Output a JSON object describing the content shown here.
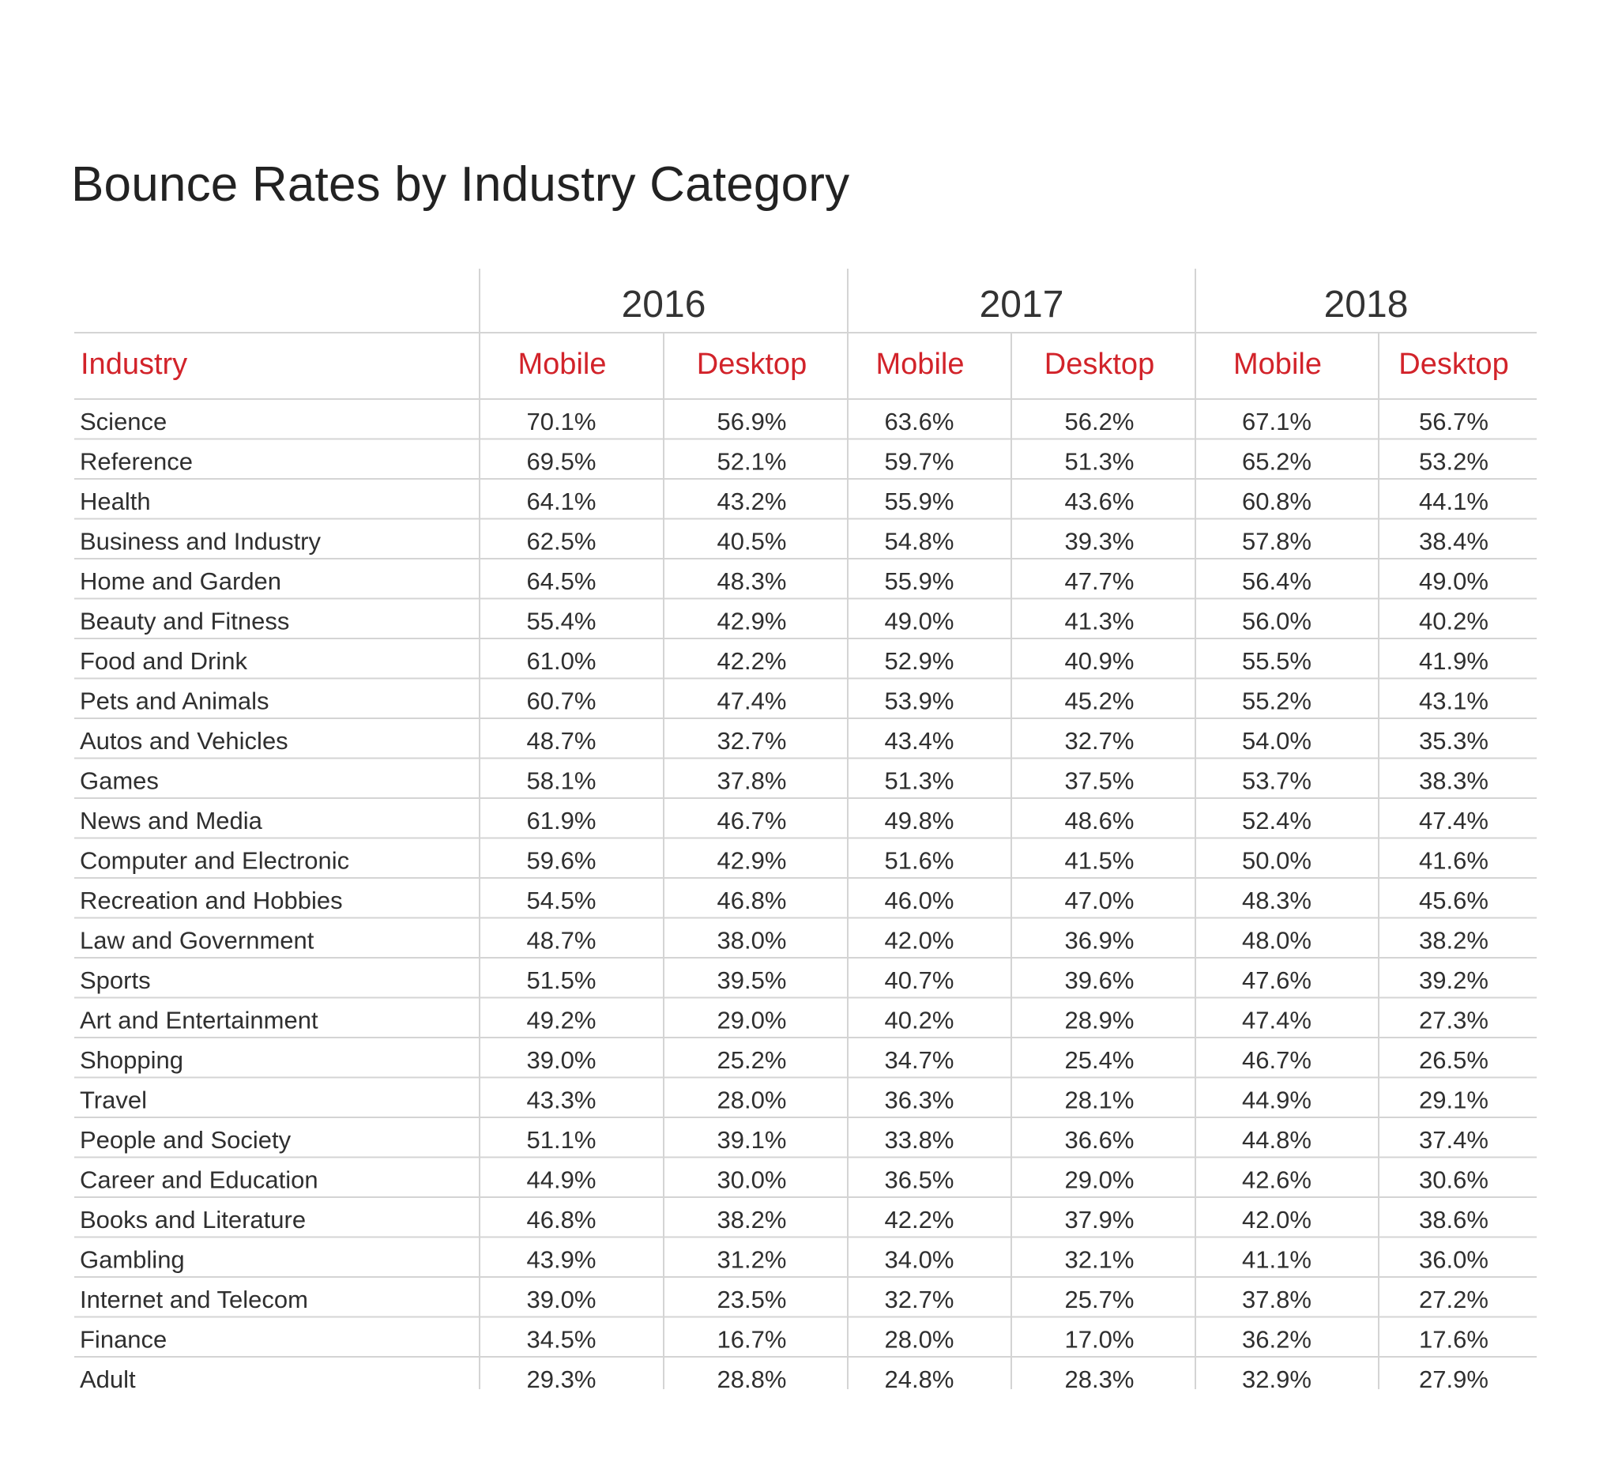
{
  "chart_data": {
    "type": "table",
    "title": "Bounce Rates by Industry Category",
    "row_header": "Industry",
    "years": [
      "2016",
      "2017",
      "2018"
    ],
    "sub_columns": [
      "Mobile",
      "Desktop"
    ],
    "accent_color": "#d2232a",
    "grid_color": "#d4d4d4",
    "rows": [
      {
        "industry": "Science",
        "values": [
          "70.1%",
          "56.9%",
          "63.6%",
          "56.2%",
          "67.1%",
          "56.7%"
        ]
      },
      {
        "industry": "Reference",
        "values": [
          "69.5%",
          "52.1%",
          "59.7%",
          "51.3%",
          "65.2%",
          "53.2%"
        ]
      },
      {
        "industry": "Health",
        "values": [
          "64.1%",
          "43.2%",
          "55.9%",
          "43.6%",
          "60.8%",
          "44.1%"
        ]
      },
      {
        "industry": "Business and Industry",
        "values": [
          "62.5%",
          "40.5%",
          "54.8%",
          "39.3%",
          "57.8%",
          "38.4%"
        ]
      },
      {
        "industry": "Home and Garden",
        "values": [
          "64.5%",
          "48.3%",
          "55.9%",
          "47.7%",
          "56.4%",
          "49.0%"
        ]
      },
      {
        "industry": "Beauty and Fitness",
        "values": [
          "55.4%",
          "42.9%",
          "49.0%",
          "41.3%",
          "56.0%",
          "40.2%"
        ]
      },
      {
        "industry": "Food and Drink",
        "values": [
          "61.0%",
          "42.2%",
          "52.9%",
          "40.9%",
          "55.5%",
          "41.9%"
        ]
      },
      {
        "industry": "Pets and Animals",
        "values": [
          "60.7%",
          "47.4%",
          "53.9%",
          "45.2%",
          "55.2%",
          "43.1%"
        ]
      },
      {
        "industry": "Autos and Vehicles",
        "values": [
          "48.7%",
          "32.7%",
          "43.4%",
          "32.7%",
          "54.0%",
          "35.3%"
        ]
      },
      {
        "industry": "Games",
        "values": [
          "58.1%",
          "37.8%",
          "51.3%",
          "37.5%",
          "53.7%",
          "38.3%"
        ]
      },
      {
        "industry": "News and Media",
        "values": [
          "61.9%",
          "46.7%",
          "49.8%",
          "48.6%",
          "52.4%",
          "47.4%"
        ]
      },
      {
        "industry": "Computer and Electronic",
        "values": [
          "59.6%",
          "42.9%",
          "51.6%",
          "41.5%",
          "50.0%",
          "41.6%"
        ]
      },
      {
        "industry": "Recreation and Hobbies",
        "values": [
          "54.5%",
          "46.8%",
          "46.0%",
          "47.0%",
          "48.3%",
          "45.6%"
        ]
      },
      {
        "industry": "Law and Government",
        "values": [
          "48.7%",
          "38.0%",
          "42.0%",
          "36.9%",
          "48.0%",
          "38.2%"
        ]
      },
      {
        "industry": "Sports",
        "values": [
          "51.5%",
          "39.5%",
          "40.7%",
          "39.6%",
          "47.6%",
          "39.2%"
        ]
      },
      {
        "industry": "Art and Entertainment",
        "values": [
          "49.2%",
          "29.0%",
          "40.2%",
          "28.9%",
          "47.4%",
          "27.3%"
        ]
      },
      {
        "industry": "Shopping",
        "values": [
          "39.0%",
          "25.2%",
          "34.7%",
          "25.4%",
          "46.7%",
          "26.5%"
        ]
      },
      {
        "industry": "Travel",
        "values": [
          "43.3%",
          "28.0%",
          "36.3%",
          "28.1%",
          "44.9%",
          "29.1%"
        ]
      },
      {
        "industry": "People and Society",
        "values": [
          "51.1%",
          "39.1%",
          "33.8%",
          "36.6%",
          "44.8%",
          "37.4%"
        ]
      },
      {
        "industry": "Career and Education",
        "values": [
          "44.9%",
          "30.0%",
          "36.5%",
          "29.0%",
          "42.6%",
          "30.6%"
        ]
      },
      {
        "industry": "Books and Literature",
        "values": [
          "46.8%",
          "38.2%",
          "42.2%",
          "37.9%",
          "42.0%",
          "38.6%"
        ]
      },
      {
        "industry": "Gambling",
        "values": [
          "43.9%",
          "31.2%",
          "34.0%",
          "32.1%",
          "41.1%",
          "36.0%"
        ]
      },
      {
        "industry": "Internet and Telecom",
        "values": [
          "39.0%",
          "23.5%",
          "32.7%",
          "25.7%",
          "37.8%",
          "27.2%"
        ]
      },
      {
        "industry": "Finance",
        "values": [
          "34.5%",
          "16.7%",
          "28.0%",
          "17.0%",
          "36.2%",
          "17.6%"
        ]
      },
      {
        "industry": "Adult",
        "values": [
          "29.3%",
          "28.8%",
          "24.8%",
          "28.3%",
          "32.9%",
          "27.9%"
        ]
      }
    ]
  }
}
